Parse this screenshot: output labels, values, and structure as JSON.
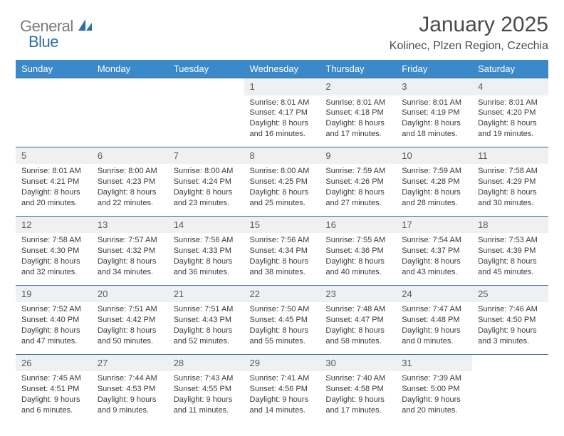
{
  "logo": {
    "word1": "General",
    "word2": "Blue"
  },
  "title": "January 2025",
  "subtitle": "Kolinec, Plzen Region, Czechia",
  "colors": {
    "header_bg": "#3b89c9",
    "header_text": "#ffffff",
    "daynum_bg": "#eef0f2",
    "row_border": "#2f6fa8",
    "logo_gray": "#7a7a7a",
    "logo_blue": "#2f6fa8",
    "text": "#3a3a3a"
  },
  "weekdays": [
    "Sunday",
    "Monday",
    "Tuesday",
    "Wednesday",
    "Thursday",
    "Friday",
    "Saturday"
  ],
  "weeks": [
    {
      "nums": [
        "",
        "",
        "",
        "1",
        "2",
        "3",
        "4"
      ],
      "details": [
        "",
        "",
        "",
        "Sunrise: 8:01 AM\nSunset: 4:17 PM\nDaylight: 8 hours and 16 minutes.",
        "Sunrise: 8:01 AM\nSunset: 4:18 PM\nDaylight: 8 hours and 17 minutes.",
        "Sunrise: 8:01 AM\nSunset: 4:19 PM\nDaylight: 8 hours and 18 minutes.",
        "Sunrise: 8:01 AM\nSunset: 4:20 PM\nDaylight: 8 hours and 19 minutes."
      ]
    },
    {
      "nums": [
        "5",
        "6",
        "7",
        "8",
        "9",
        "10",
        "11"
      ],
      "details": [
        "Sunrise: 8:01 AM\nSunset: 4:21 PM\nDaylight: 8 hours and 20 minutes.",
        "Sunrise: 8:00 AM\nSunset: 4:23 PM\nDaylight: 8 hours and 22 minutes.",
        "Sunrise: 8:00 AM\nSunset: 4:24 PM\nDaylight: 8 hours and 23 minutes.",
        "Sunrise: 8:00 AM\nSunset: 4:25 PM\nDaylight: 8 hours and 25 minutes.",
        "Sunrise: 7:59 AM\nSunset: 4:26 PM\nDaylight: 8 hours and 27 minutes.",
        "Sunrise: 7:59 AM\nSunset: 4:28 PM\nDaylight: 8 hours and 28 minutes.",
        "Sunrise: 7:58 AM\nSunset: 4:29 PM\nDaylight: 8 hours and 30 minutes."
      ]
    },
    {
      "nums": [
        "12",
        "13",
        "14",
        "15",
        "16",
        "17",
        "18"
      ],
      "details": [
        "Sunrise: 7:58 AM\nSunset: 4:30 PM\nDaylight: 8 hours and 32 minutes.",
        "Sunrise: 7:57 AM\nSunset: 4:32 PM\nDaylight: 8 hours and 34 minutes.",
        "Sunrise: 7:56 AM\nSunset: 4:33 PM\nDaylight: 8 hours and 36 minutes.",
        "Sunrise: 7:56 AM\nSunset: 4:34 PM\nDaylight: 8 hours and 38 minutes.",
        "Sunrise: 7:55 AM\nSunset: 4:36 PM\nDaylight: 8 hours and 40 minutes.",
        "Sunrise: 7:54 AM\nSunset: 4:37 PM\nDaylight: 8 hours and 43 minutes.",
        "Sunrise: 7:53 AM\nSunset: 4:39 PM\nDaylight: 8 hours and 45 minutes."
      ]
    },
    {
      "nums": [
        "19",
        "20",
        "21",
        "22",
        "23",
        "24",
        "25"
      ],
      "details": [
        "Sunrise: 7:52 AM\nSunset: 4:40 PM\nDaylight: 8 hours and 47 minutes.",
        "Sunrise: 7:51 AM\nSunset: 4:42 PM\nDaylight: 8 hours and 50 minutes.",
        "Sunrise: 7:51 AM\nSunset: 4:43 PM\nDaylight: 8 hours and 52 minutes.",
        "Sunrise: 7:50 AM\nSunset: 4:45 PM\nDaylight: 8 hours and 55 minutes.",
        "Sunrise: 7:48 AM\nSunset: 4:47 PM\nDaylight: 8 hours and 58 minutes.",
        "Sunrise: 7:47 AM\nSunset: 4:48 PM\nDaylight: 9 hours and 0 minutes.",
        "Sunrise: 7:46 AM\nSunset: 4:50 PM\nDaylight: 9 hours and 3 minutes."
      ]
    },
    {
      "nums": [
        "26",
        "27",
        "28",
        "29",
        "30",
        "31",
        ""
      ],
      "details": [
        "Sunrise: 7:45 AM\nSunset: 4:51 PM\nDaylight: 9 hours and 6 minutes.",
        "Sunrise: 7:44 AM\nSunset: 4:53 PM\nDaylight: 9 hours and 9 minutes.",
        "Sunrise: 7:43 AM\nSunset: 4:55 PM\nDaylight: 9 hours and 11 minutes.",
        "Sunrise: 7:41 AM\nSunset: 4:56 PM\nDaylight: 9 hours and 14 minutes.",
        "Sunrise: 7:40 AM\nSunset: 4:58 PM\nDaylight: 9 hours and 17 minutes.",
        "Sunrise: 7:39 AM\nSunset: 5:00 PM\nDaylight: 9 hours and 20 minutes.",
        ""
      ]
    }
  ]
}
